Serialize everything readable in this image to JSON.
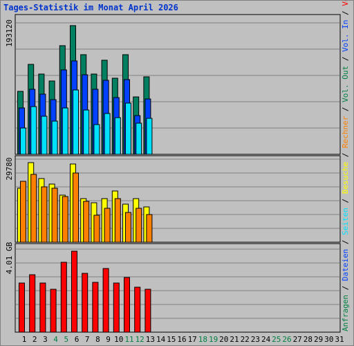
{
  "title": "Tages-Statistik im Monat April 2026",
  "right_legend": [
    {
      "text": "Anfragen",
      "color": "#008040"
    },
    {
      "text": " / ",
      "color": "#000000"
    },
    {
      "text": "Dateien",
      "color": "#0040FF"
    },
    {
      "text": " / ",
      "color": "#000000"
    },
    {
      "text": "Seiten",
      "color": "#00E0FF"
    },
    {
      "text": " / ",
      "color": "#000000"
    },
    {
      "text": "Besuche",
      "color": "#FFFF00"
    },
    {
      "text": " / ",
      "color": "#000000"
    },
    {
      "text": "Rechner",
      "color": "#FF8000"
    },
    {
      "text": " / ",
      "color": "#000000"
    },
    {
      "text": "Vol. Out",
      "color": "#008040"
    },
    {
      "text": " / ",
      "color": "#000000"
    },
    {
      "text": "Vol. In",
      "color": "#0040FF"
    },
    {
      "text": " / ",
      "color": "#000000"
    },
    {
      "text": "Volumen",
      "color": "#FF0000"
    }
  ],
  "colors": {
    "anfragen": "#008060",
    "dateien": "#0040FF",
    "seiten": "#00E0FF",
    "besuche": "#FFFF00",
    "rechner": "#FF8000",
    "volumen": "#FF0000",
    "weekend_day": "#008040",
    "weekday": "#000000"
  },
  "chart_data": [
    {
      "type": "bar",
      "name": "top",
      "ymax_label": "193120",
      "ymax": 193120,
      "categories": [
        "1",
        "2",
        "3",
        "4",
        "5",
        "6",
        "7",
        "8",
        "9",
        "10",
        "11",
        "12",
        "13"
      ],
      "series": [
        {
          "name": "Anfragen",
          "values": [
            92000,
            132000,
            118000,
            108000,
            160000,
            189000,
            146000,
            118000,
            138000,
            112000,
            146000,
            84000,
            114000
          ]
        },
        {
          "name": "Dateien",
          "values": [
            68000,
            96000,
            88000,
            80000,
            124000,
            137000,
            117000,
            96000,
            109000,
            83000,
            110000,
            57000,
            81000
          ]
        },
        {
          "name": "Seiten",
          "values": [
            39000,
            70000,
            56000,
            49000,
            68000,
            95000,
            65000,
            44000,
            60000,
            54000,
            75000,
            46000,
            53000
          ]
        }
      ]
    },
    {
      "type": "bar",
      "name": "middle",
      "ymax_label": "29780",
      "ymax": 29780,
      "categories": [
        "1",
        "2",
        "3",
        "4",
        "5",
        "6",
        "7",
        "8",
        "9",
        "10",
        "11",
        "12",
        "13"
      ],
      "series": [
        {
          "name": "Besuche",
          "values": [
            19000,
            28000,
            22500,
            20500,
            16500,
            27500,
            15500,
            14000,
            15500,
            18000,
            13500,
            15500,
            12500
          ]
        },
        {
          "name": "Rechner",
          "values": [
            21500,
            24000,
            19500,
            19000,
            16000,
            24500,
            14500,
            9500,
            12000,
            15500,
            10500,
            12000,
            9800
          ]
        }
      ]
    },
    {
      "type": "bar",
      "name": "bottom",
      "ymax_label": "4.01 GB",
      "ymax": 4.01,
      "categories": [
        "1",
        "2",
        "3",
        "4",
        "5",
        "6",
        "7",
        "8",
        "9",
        "10",
        "11",
        "12",
        "13"
      ],
      "series": [
        {
          "name": "Volumen",
          "values": [
            2.35,
            2.74,
            2.35,
            2.03,
            3.31,
            3.86,
            2.8,
            2.38,
            3.03,
            2.35,
            2.6,
            2.13,
            2.03
          ]
        }
      ]
    }
  ],
  "x_axis_days": [
    {
      "label": "1",
      "weekend": false
    },
    {
      "label": "2",
      "weekend": false
    },
    {
      "label": "3",
      "weekend": false
    },
    {
      "label": "4",
      "weekend": true
    },
    {
      "label": "5",
      "weekend": true
    },
    {
      "label": "6",
      "weekend": false
    },
    {
      "label": "7",
      "weekend": false
    },
    {
      "label": "8",
      "weekend": false
    },
    {
      "label": "9",
      "weekend": false
    },
    {
      "label": "10",
      "weekend": false
    },
    {
      "label": "11",
      "weekend": true
    },
    {
      "label": "12",
      "weekend": true
    },
    {
      "label": "13",
      "weekend": false
    },
    {
      "label": "14",
      "weekend": false
    },
    {
      "label": "15",
      "weekend": false
    },
    {
      "label": "16",
      "weekend": false
    },
    {
      "label": "17",
      "weekend": false
    },
    {
      "label": "18",
      "weekend": true
    },
    {
      "label": "19",
      "weekend": true
    },
    {
      "label": "20",
      "weekend": false
    },
    {
      "label": "21",
      "weekend": false
    },
    {
      "label": "22",
      "weekend": false
    },
    {
      "label": "23",
      "weekend": false
    },
    {
      "label": "24",
      "weekend": false
    },
    {
      "label": "25",
      "weekend": true
    },
    {
      "label": "26",
      "weekend": true
    },
    {
      "label": "27",
      "weekend": false
    },
    {
      "label": "28",
      "weekend": false
    },
    {
      "label": "29",
      "weekend": false
    },
    {
      "label": "30",
      "weekend": false
    },
    {
      "label": "31",
      "weekend": false
    }
  ]
}
